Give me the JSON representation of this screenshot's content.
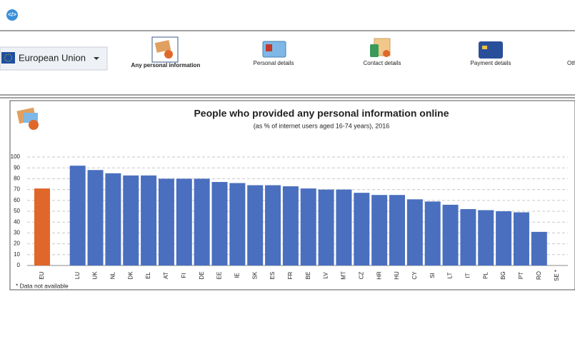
{
  "toolbar": {
    "dropdown": "European Union",
    "tabs": [
      "Any personal information",
      "Personal details",
      "Contact details",
      "Payment details",
      "Oth"
    ]
  },
  "chart_data": {
    "type": "bar",
    "title": "People who provided any personal information online",
    "subtitle": "(as % of internet users aged 16-74 years), 2016",
    "note": "* Data not available",
    "categories": [
      "EU",
      "LU",
      "UK",
      "NL",
      "DK",
      "EL",
      "AT",
      "FI",
      "DE",
      "EE",
      "IE",
      "SK",
      "ES",
      "FR",
      "BE",
      "LV",
      "MT",
      "CZ",
      "HR",
      "HU",
      "CY",
      "SI",
      "LT",
      "IT",
      "PL",
      "BG",
      "PT",
      "RO",
      "SE *"
    ],
    "values": [
      71,
      92,
      88,
      85,
      83,
      83,
      80,
      80,
      80,
      77,
      76,
      74,
      74,
      73,
      71,
      70,
      70,
      67,
      65,
      65,
      61,
      59,
      56,
      52,
      51,
      50,
      49,
      31,
      null
    ],
    "colors": [
      "#e0672a",
      "#4a6fbf",
      "#4a6fbf",
      "#4a6fbf",
      "#4a6fbf",
      "#4a6fbf",
      "#4a6fbf",
      "#4a6fbf",
      "#4a6fbf",
      "#4a6fbf",
      "#4a6fbf",
      "#4a6fbf",
      "#4a6fbf",
      "#4a6fbf",
      "#4a6fbf",
      "#4a6fbf",
      "#4a6fbf",
      "#4a6fbf",
      "#4a6fbf",
      "#4a6fbf",
      "#4a6fbf",
      "#4a6fbf",
      "#4a6fbf",
      "#4a6fbf",
      "#4a6fbf",
      "#4a6fbf",
      "#4a6fbf",
      "#4a6fbf",
      "#4a6fbf"
    ],
    "ylim": [
      0,
      100
    ],
    "yticks": [
      0,
      10,
      20,
      30,
      40,
      50,
      60,
      70,
      80,
      90,
      100
    ],
    "grid": true
  }
}
